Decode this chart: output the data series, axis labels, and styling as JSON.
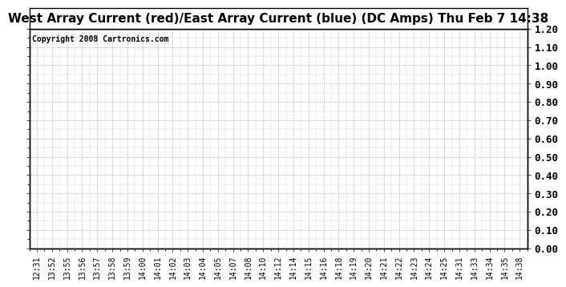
{
  "title": "West Array Current (red)/East Array Current (blue) (DC Amps) Thu Feb 7 14:38",
  "copyright_text": "Copyright 2008 Cartronics.com",
  "ylim": [
    0.0,
    1.2
  ],
  "yticks": [
    0.0,
    0.1,
    0.2,
    0.3,
    0.4,
    0.5,
    0.6,
    0.7,
    0.8,
    0.9,
    1.0,
    1.1,
    1.2
  ],
  "x_labels": [
    "12:31",
    "13:52",
    "13:55",
    "13:56",
    "13:57",
    "13:58",
    "13:59",
    "14:00",
    "14:01",
    "14:02",
    "14:03",
    "14:04",
    "14:05",
    "14:07",
    "14:08",
    "14:10",
    "14:12",
    "14:14",
    "14:15",
    "14:16",
    "14:18",
    "14:19",
    "14:20",
    "14:21",
    "14:22",
    "14:23",
    "14:24",
    "14:25",
    "14:31",
    "14:33",
    "14:34",
    "14:35",
    "14:38"
  ],
  "background_color": "#ffffff",
  "plot_bg_color": "#ffffff",
  "grid_color": "#bbbbbb",
  "border_color": "#000000",
  "title_fontsize": 11,
  "tick_fontsize": 7,
  "copyright_fontsize": 7,
  "ylabel_fontsize": 9
}
